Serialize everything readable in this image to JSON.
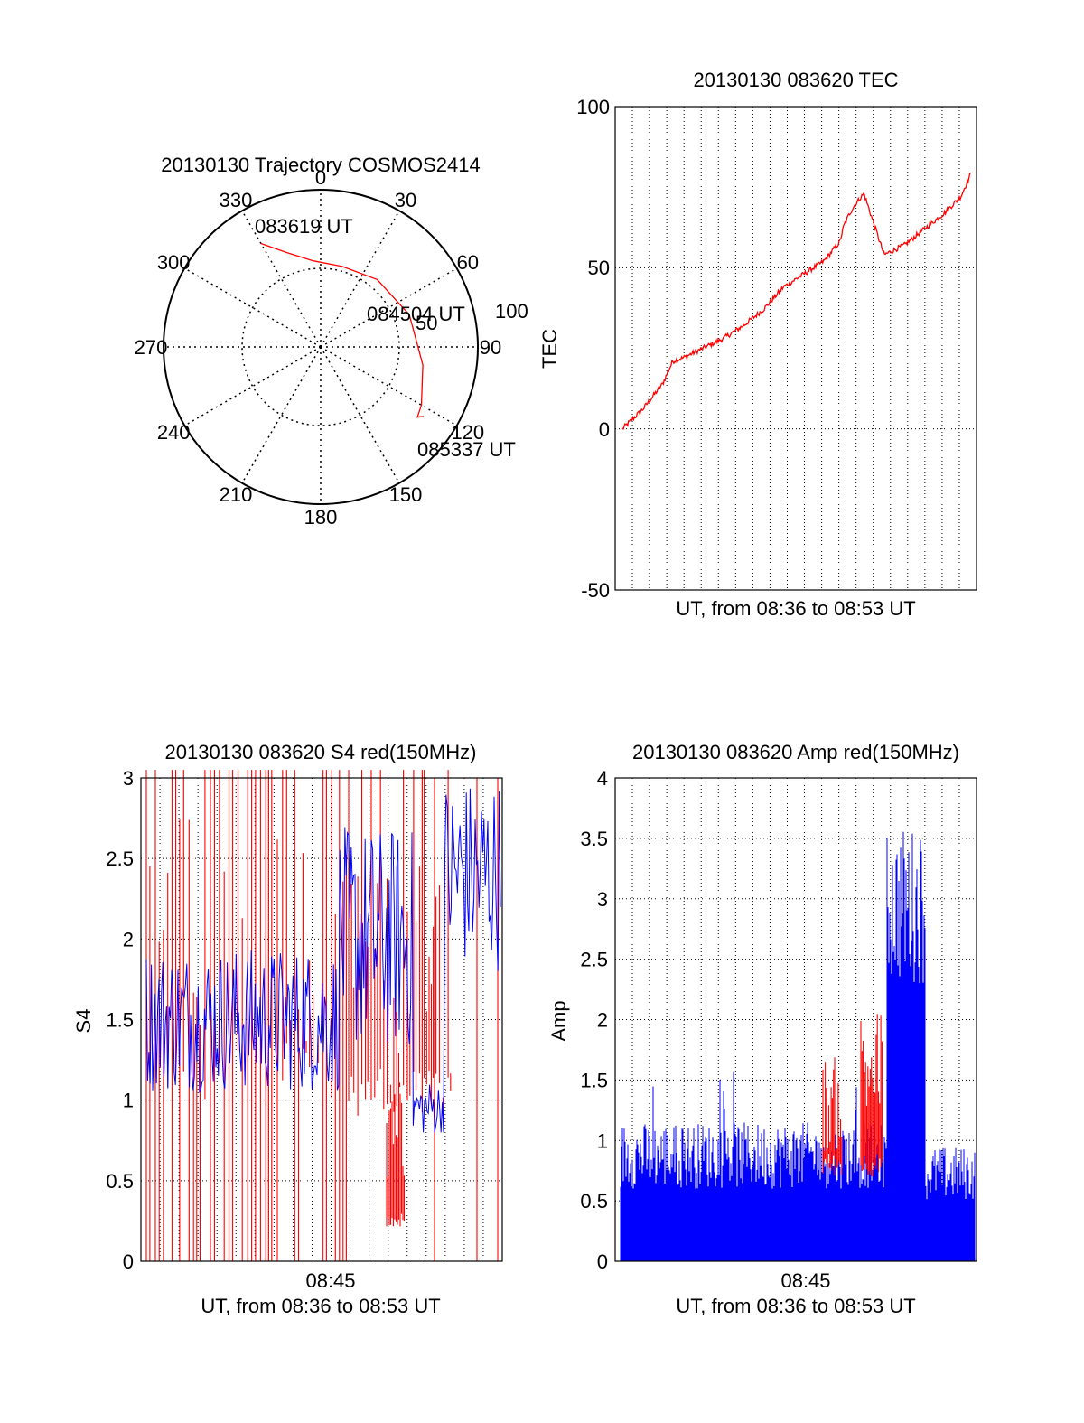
{
  "chart_data": [
    {
      "type": "polar",
      "title": "20130130 Trajectory COSMOS2414",
      "angular_ticks": [
        "0",
        "30",
        "60",
        "90",
        "120",
        "150",
        "180",
        "210",
        "240",
        "270",
        "300",
        "330"
      ],
      "radial_ticks": [
        "50",
        "100"
      ],
      "radial_range": [
        0,
        100
      ],
      "series": [
        {
          "color": "#ff0000",
          "points": [
            {
              "az": 330,
              "r": 76
            },
            {
              "az": 340,
              "r": 64
            },
            {
              "az": 355,
              "r": 55
            },
            {
              "az": 15,
              "r": 53
            },
            {
              "az": 40,
              "r": 56
            },
            {
              "az": 70,
              "r": 60
            },
            {
              "az": 100,
              "r": 66
            },
            {
              "az": 120,
              "r": 74
            },
            {
              "az": 126,
              "r": 76
            },
            {
              "az": 124,
              "r": 79
            }
          ]
        }
      ],
      "annotations": [
        {
          "text": "083619 UT",
          "az": 330,
          "r": 76
        },
        {
          "text": "084504 UT",
          "az": 70,
          "r": 60
        },
        {
          "text": "085337 UT",
          "az": 124,
          "r": 79
        }
      ]
    },
    {
      "type": "line",
      "title": "20130130 083620 TEC",
      "xlabel": "UT, from 08:36 to 08:53 UT",
      "ylabel": "TEC",
      "ylim": [
        -50,
        100
      ],
      "yticks": [
        "100",
        "50",
        "0",
        "-50"
      ],
      "grid": true,
      "series": [
        {
          "color": "#ff0000",
          "x_minutes_after_0836": [
            0,
            0.5,
            1,
            1.5,
            2,
            2.5,
            3,
            4,
            5,
            6,
            7,
            8,
            9,
            10,
            10.8,
            11,
            11.3,
            11.6,
            12,
            13,
            14,
            15,
            16,
            16.8,
            17.3
          ],
          "values": [
            0,
            3,
            6,
            10,
            14,
            21,
            22,
            25,
            28,
            32,
            37,
            44,
            48,
            52,
            58,
            63,
            67,
            70,
            73,
            54,
            57,
            62,
            67,
            72,
            79
          ]
        }
      ]
    },
    {
      "type": "line",
      "title": "20130130 083620 S4 red(150MHz)",
      "xlabel": "UT, from 08:36 to 08:53 UT",
      "ylabel": "S4",
      "ylim": [
        0,
        3
      ],
      "yticks": [
        "3",
        "2.5",
        "2",
        "1.5",
        "1",
        "0.5",
        "0"
      ],
      "xticks": [
        "08:45"
      ],
      "grid": true,
      "series": [
        {
          "color": "#ff0000",
          "description_values_range": [
            0,
            3
          ]
        },
        {
          "color": "#0000ff",
          "description_values_range": [
            0.8,
            3
          ]
        }
      ]
    },
    {
      "type": "area",
      "title": "20130130 083620 Amp red(150MHz)",
      "xlabel": "UT, from 08:36 to 08:53 UT",
      "ylabel": "Amp",
      "ylim": [
        0,
        4
      ],
      "yticks": [
        "4",
        "3.5",
        "3",
        "2.5",
        "2",
        "1.5",
        "1",
        "0.5",
        "0"
      ],
      "xticks": [
        "08:45"
      ],
      "grid": true,
      "series": [
        {
          "color": "#ff0000",
          "peak": 2.15
        },
        {
          "color": "#0000ff",
          "peak": 3.75
        }
      ]
    }
  ]
}
